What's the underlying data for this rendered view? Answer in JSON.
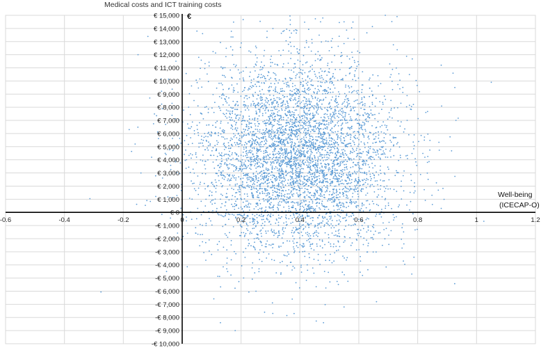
{
  "chart_data": {
    "type": "scatter",
    "title": "Medical costs and ICT training costs",
    "y_unit": "€",
    "xlabel_line1": "Well-being",
    "xlabel_line2": "(ICECAP-O)",
    "xlim": [
      -0.6,
      1.2
    ],
    "ylim": [
      -10000,
      15000
    ],
    "x_ticks": [
      -0.6,
      -0.4,
      -0.2,
      0,
      0.2,
      0.4,
      0.6,
      0.8,
      1,
      1.2
    ],
    "x_tick_labels": [
      "-0.6",
      "-0.4",
      "-0.2",
      "0",
      "0.2",
      "0.4",
      "0.6",
      "0.8",
      "1",
      "1.2"
    ],
    "y_ticks": [
      -10000,
      -9000,
      -8000,
      -7000,
      -6000,
      -5000,
      -4000,
      -3000,
      -2000,
      -1000,
      0,
      1000,
      2000,
      3000,
      4000,
      5000,
      6000,
      7000,
      8000,
      9000,
      10000,
      11000,
      12000,
      13000,
      14000,
      15000
    ],
    "y_tick_labels": [
      "-€ 10,000",
      "-€ 9,000",
      "-€ 8,000",
      "-€ 7,000",
      "-€ 6,000",
      "-€ 5,000",
      "-€ 4,000",
      "-€ 3,000",
      "-€ 2,000",
      "-€ 1,000",
      "€ 0",
      "€ 1,000",
      "€ 2,000",
      "€ 3,000",
      "€ 4,000",
      "€ 5,000",
      "€ 6,000",
      "€ 7,000",
      "€ 8,000",
      "€ 9,000",
      "€ 10,000",
      "€ 11,000",
      "€ 12,000",
      "€ 13,000",
      "€ 14,000",
      "€ 15,000"
    ],
    "grid": true,
    "point_color": "#5b9bd5",
    "series": [
      {
        "point_count": 5000,
        "x_mean": 0.39,
        "x_sd": 0.17,
        "y_mean": 4300,
        "y_sd": 3700,
        "points": [
          [
            1.05,
            9900
          ],
          [
            0.92,
            10600
          ],
          [
            0.88,
            11200
          ],
          [
            0.73,
            14900
          ],
          [
            0.55,
            14500
          ],
          [
            0.47,
            14500
          ],
          [
            0.05,
            13800
          ],
          [
            -0.18,
            6300
          ],
          [
            -0.15,
            12000
          ],
          [
            -0.11,
            8700
          ],
          [
            -0.14,
            3000
          ],
          [
            -0.16,
            5200
          ],
          [
            -0.12,
            900
          ],
          [
            0.13,
            -8400
          ],
          [
            0.18,
            -9000
          ],
          [
            0.28,
            -7600
          ],
          [
            0.38,
            -7700
          ],
          [
            0.48,
            -8400
          ],
          [
            0.66,
            -6800
          ],
          [
            0.55,
            -7200
          ],
          [
            0.78,
            -4700
          ],
          [
            0.85,
            600
          ],
          [
            0.88,
            300
          ],
          [
            0.93,
            7000
          ],
          [
            0.69,
            15000
          ]
        ]
      }
    ]
  }
}
